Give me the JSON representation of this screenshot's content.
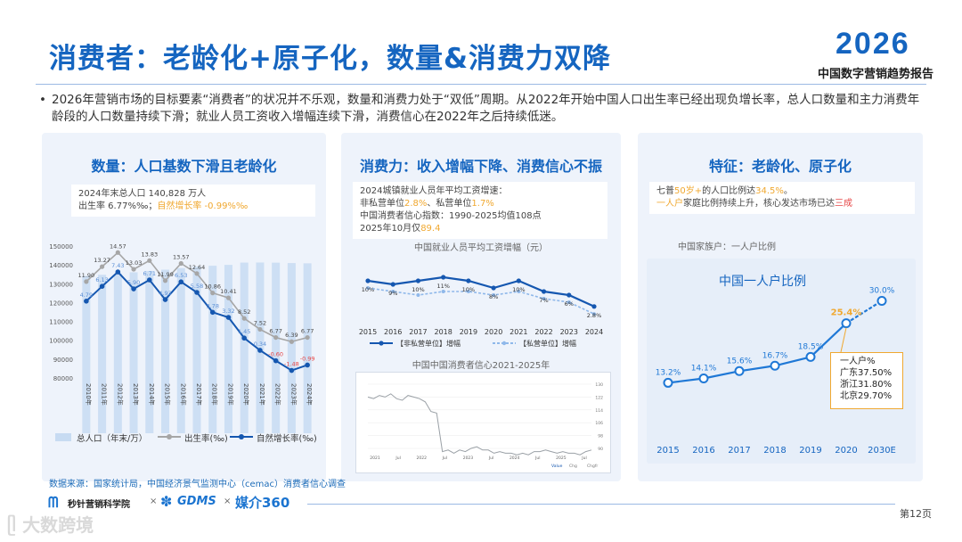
{
  "header": {
    "title": "消费者：老龄化+原子化，数量&消费力双降",
    "year": "2026",
    "report_title": "中国数字营销趋势报告"
  },
  "intro": "2026年营销市场的目标要素“消费者”的状况并不乐观，数量和消费力处于“双低”周期。从2022年开始中国人口出生率已经出现负增长率，总人口数量和主力消费年龄段的人口数量持续下滑；就业人员工资收入增幅连续下滑，消费信心在2022年之后持续低迷。",
  "panel1": {
    "title": "数量：人口基数下滑且老龄化",
    "note_line1": "2024年末总人口  140,828 万人",
    "note_birth_prefix": "出生率  6.77%‰；",
    "note_growth": "自然增长率 -0.99%‰"
  },
  "panel2": {
    "title": "消费力：收入增幅下降、消费信心不振",
    "note_line1": "2024城镇就业人员年平均工资增速：",
    "note_line2_prefix": "非私营单位",
    "note_line2_v1": "2.8%",
    "note_line2_mid": "、私营单位",
    "note_line2_v2": "1.7%",
    "note_line3": "中国消费者信心指数：1990-2025均值108点",
    "note_line4_prefix": "2025年10月仅",
    "note_line4_v": "89.4",
    "wage_caption": "中国就业人员平均工资增幅（元）",
    "confidence_caption": "中国中国消费者信心2021-2025年"
  },
  "panel3": {
    "title": "特征：老龄化、原子化",
    "note_p1": "七普",
    "note_p1_hl": "50岁+",
    "note_p2": "的人口比例达",
    "note_p2_hl": "34.5%",
    "note_p3": "。",
    "note_l2_hl": "一人户",
    "note_l2": "家庭比例持续上升，核心发达市场已达",
    "note_l2_red": "三成",
    "caption": "中国家族户：一人户比例",
    "callout_title": "一人户%",
    "callout_lines": [
      "广东37.50%",
      "浙江31.80%",
      "北京29.70%"
    ]
  },
  "footer": {
    "source": "数据来源：国家统计局，中国经济景气监测中心（cemac）消费者信心调查",
    "logo1": "秒针营销科学院",
    "logo2": "GDMS",
    "logo3": "媒介360",
    "watermark": "大数跨境",
    "page": "第12页",
    "times1": "×",
    "times2": "×"
  },
  "colors": {
    "primary": "#1565c0",
    "accent": "#f0a830",
    "alert": "#e64545",
    "panel_bg": "#eef3fb"
  },
  "chart_data": [
    {
      "type": "bar",
      "title": "人口",
      "categories": [
        "2010年",
        "2011年",
        "2012年",
        "2013年",
        "2014年",
        "2015年",
        "2016年",
        "2017年",
        "2018年",
        "2019年",
        "2020年",
        "2021年",
        "2022年",
        "2023年",
        "2024年"
      ],
      "series": [
        {
          "name": "总人口（年末/万）",
          "type": "bar",
          "values": [
            134091,
            134735,
            135404,
            136072,
            136782,
            137462,
            138271,
            139008,
            139538,
            140005,
            141212,
            141260,
            141175,
            140967,
            140828
          ]
        },
        {
          "name": "出生率(‰)",
          "type": "line",
          "values": [
            11.9,
            13.27,
            14.57,
            13.03,
            13.83,
            11.99,
            13.57,
            12.64,
            10.86,
            10.41,
            8.52,
            7.52,
            6.77,
            6.39,
            6.77
          ]
        },
        {
          "name": "自然增长率(‰)",
          "type": "line",
          "values": [
            4.79,
            6.13,
            7.43,
            5.9,
            6.71,
            4.93,
            6.53,
            5.58,
            3.78,
            3.32,
            1.45,
            0.34,
            -0.6,
            -1.48,
            -0.99
          ]
        }
      ],
      "y_ticks": [
        "150000",
        "140000",
        "130000",
        "120000",
        "110000",
        "100000",
        "90000",
        "80000"
      ],
      "ylim": [
        80000,
        150000
      ]
    },
    {
      "type": "line",
      "title": "中国就业人员平均工资增幅（元）",
      "categories": [
        "2015",
        "2016",
        "2017",
        "2018",
        "2019",
        "2020",
        "2021",
        "2022",
        "2023",
        "2024"
      ],
      "series": [
        {
          "name": "【非私营单位】增幅",
          "values": [
            10,
            9,
            10,
            11,
            10,
            8,
            10,
            7,
            6,
            2.8
          ]
        },
        {
          "name": "【私营单位】增幅",
          "values": [
            9,
            8,
            7,
            8,
            8,
            7,
            8,
            6,
            5,
            1.7
          ]
        }
      ],
      "labels": [
        "10%",
        "9%",
        "10%",
        "11%",
        "10%",
        "8%",
        "10%",
        "7%",
        "6%",
        "2.8%"
      ],
      "sub_labels": [
        "9%",
        "8%",
        "7%",
        "8%",
        "8%",
        "7%",
        "8%",
        "6%",
        "5%",
        "1.7%"
      ]
    },
    {
      "type": "line",
      "title": "中国中国消费者信心2021-2025年",
      "x_ticks": [
        "2021",
        "Jul",
        "2022",
        "Jul",
        "2023",
        "Jul",
        "2024",
        "Jul",
        "2025",
        "Jul"
      ],
      "y_ticks": [
        "130",
        "122",
        "114",
        "106",
        "98",
        "90"
      ],
      "values": [
        122,
        121,
        123,
        122,
        124,
        121,
        120,
        123,
        122,
        121,
        119,
        113,
        112,
        88,
        89,
        87,
        89,
        88,
        90,
        91,
        89,
        89,
        87,
        88,
        87,
        87,
        86,
        87,
        86,
        88,
        88,
        89,
        88,
        87,
        88,
        87,
        87,
        86,
        88,
        89
      ],
      "legend": [
        "Value",
        "Chg",
        "Chgfr"
      ]
    },
    {
      "type": "line",
      "title": "中国一人户比例",
      "categories": [
        "2015",
        "2016",
        "2017",
        "2018",
        "2019",
        "2020",
        "2030E"
      ],
      "values": [
        13.2,
        14.1,
        15.6,
        16.7,
        18.5,
        25.4,
        30.0
      ],
      "labels": [
        "13.2%",
        "14.1%",
        "15.6%",
        "16.7%",
        "18.5%",
        "25.4%",
        "30.0%"
      ]
    }
  ]
}
